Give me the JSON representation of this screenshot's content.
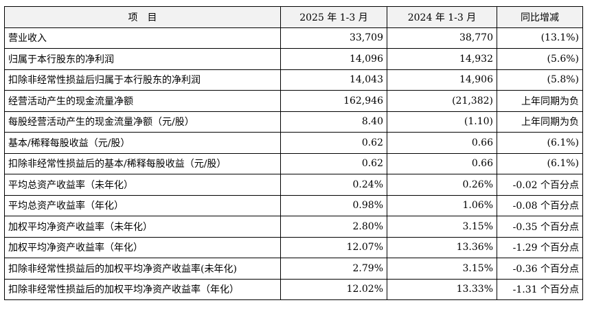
{
  "table": {
    "headers": [
      "项　目",
      "2025 年 1-3 月",
      "2024 年 1-3 月",
      "同比增减"
    ],
    "rows": [
      {
        "item": "营业收入",
        "y2025": "33,709",
        "y2024": "38,770",
        "change": "(13.1%)"
      },
      {
        "item": "归属于本行股东的净利润",
        "y2025": "14,096",
        "y2024": "14,932",
        "change": "(5.6%)"
      },
      {
        "item": "扣除非经常性损益后归属于本行股东的净利润",
        "y2025": "14,043",
        "y2024": "14,906",
        "change": "(5.8%)"
      },
      {
        "item": "经营活动产生的现金流量净额",
        "y2025": "162,946",
        "y2024": "(21,382)",
        "change": "上年同期为负"
      },
      {
        "item": "每股经营活动产生的现金流量净额（元/股）",
        "y2025": "8.40",
        "y2024": "(1.10)",
        "change": "上年同期为负"
      },
      {
        "item": "基本/稀释每股收益（元/股）",
        "y2025": "0.62",
        "y2024": "0.66",
        "change": "(6.1%)"
      },
      {
        "item": "扣除非经常性损益后的基本/稀释每股收益（元/股）",
        "y2025": "0.62",
        "y2024": "0.66",
        "change": "(6.1%)"
      },
      {
        "item": "平均总资产收益率（未年化）",
        "y2025": "0.24%",
        "y2024": "0.26%",
        "change": "-0.02 个百分点"
      },
      {
        "item": "平均总资产收益率（年化）",
        "y2025": "0.98%",
        "y2024": "1.06%",
        "change": "-0.08 个百分点"
      },
      {
        "item": "加权平均净资产收益率（未年化）",
        "y2025": "2.80%",
        "y2024": "3.15%",
        "change": "-0.35 个百分点"
      },
      {
        "item": "加权平均净资产收益率（年化）",
        "y2025": "12.07%",
        "y2024": "13.36%",
        "change": "-1.29 个百分点"
      },
      {
        "item": "扣除非经常性损益后的加权平均净资产收益率(未年化)",
        "y2025": "2.79%",
        "y2024": "3.15%",
        "change": "-0.36 个百分点"
      },
      {
        "item": "扣除非经常性损益后的加权平均净资产收益率（年化）",
        "y2025": "12.02%",
        "y2024": "13.33%",
        "change": "-1.31 个百分点"
      }
    ]
  }
}
